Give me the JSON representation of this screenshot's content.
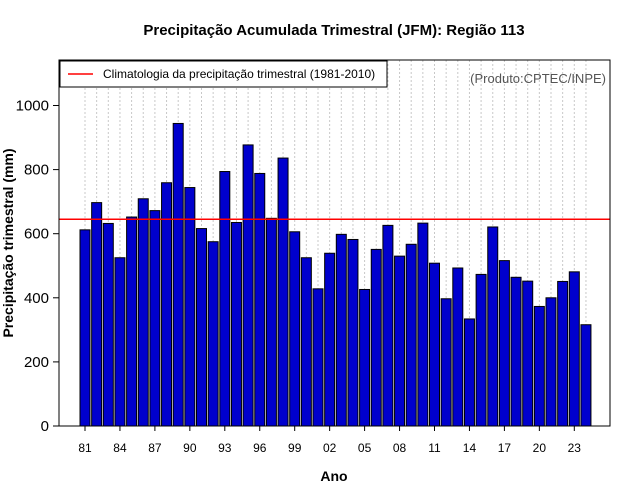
{
  "chart_data": {
    "type": "bar",
    "title": "Precipitação Acumulada Trimestral (JFM): Região 113",
    "xlabel": "Ano",
    "ylabel": "Precipitação trimestral (mm)",
    "ylim": [
      0,
      1100
    ],
    "yticks": [
      0,
      200,
      400,
      600,
      800,
      1000
    ],
    "years": [
      1981,
      1982,
      1983,
      1984,
      1985,
      1986,
      1987,
      1988,
      1989,
      1990,
      1991,
      1992,
      1993,
      1994,
      1995,
      1996,
      1997,
      1998,
      1999,
      2000,
      2001,
      2002,
      2003,
      2004,
      2005,
      2006,
      2007,
      2008,
      2009,
      2010,
      2011,
      2012,
      2013,
      2014,
      2015,
      2016,
      2017,
      2018,
      2019,
      2020,
      2021,
      2022,
      2023,
      2024
    ],
    "x_tick_labels": [
      "81",
      "84",
      "87",
      "90",
      "93",
      "96",
      "99",
      "02",
      "05",
      "08",
      "11",
      "14",
      "17",
      "20",
      "23"
    ],
    "values": [
      612,
      697,
      632,
      525,
      652,
      709,
      672,
      759,
      944,
      744,
      616,
      575,
      794,
      635,
      877,
      788,
      648,
      836,
      606,
      525,
      428,
      539,
      598,
      582,
      426,
      551,
      626,
      530,
      567,
      633,
      508,
      397,
      493,
      334,
      473,
      621,
      516,
      464,
      452,
      373,
      400,
      451,
      481,
      316
    ],
    "bar_color": "#0000CD",
    "bar_edge_color": "#000000",
    "climatology": {
      "value": 645,
      "label": "Climatologia da precipitação trimestral (1981-2010)",
      "color": "#FF0000"
    },
    "source_note": "(Produto:CPTEC/INPE)",
    "legend_position": "top-left",
    "grid": "vertical dotted"
  }
}
